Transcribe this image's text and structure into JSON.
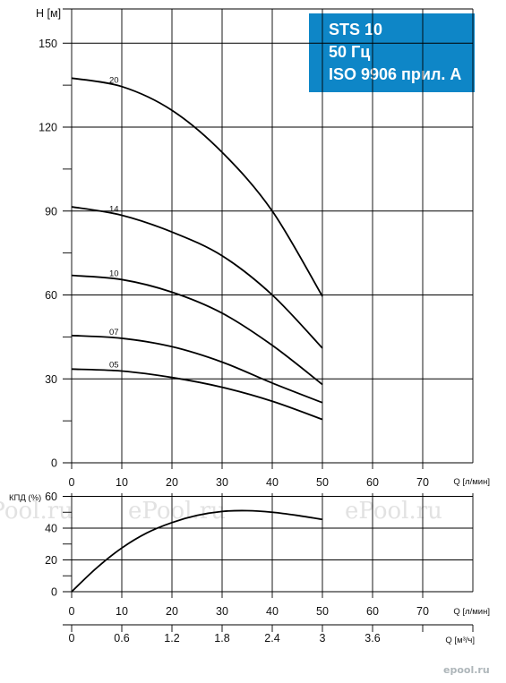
{
  "title_box": {
    "line1": "STS 10",
    "line2": "50 Гц",
    "line3": "ISO 9906 прил. A",
    "background": "#0e86c7",
    "text_color": "#ffffff"
  },
  "watermark": {
    "text": "ePool.ru",
    "logo": "epool.ru"
  },
  "chart_data": [
    {
      "type": "line",
      "ylabel": "H [м]",
      "xlabel": "Q [л/мин]",
      "xlim": [
        0,
        80
      ],
      "ylim": [
        0,
        160
      ],
      "x_ticks": [
        "0",
        "10",
        "20",
        "30",
        "40",
        "50",
        "60",
        "70"
      ],
      "y_ticks": [
        "0",
        "30",
        "60",
        "90",
        "120",
        "150"
      ],
      "grid": true,
      "series": [
        {
          "name": "20",
          "x": [
            0,
            10,
            20,
            30,
            40,
            50
          ],
          "values": [
            137.5,
            134.5,
            126,
            111,
            90,
            59.5
          ]
        },
        {
          "name": "14",
          "x": [
            0,
            10,
            20,
            30,
            40,
            50
          ],
          "values": [
            91.5,
            88.5,
            82.5,
            74,
            60,
            41
          ]
        },
        {
          "name": "10",
          "x": [
            0,
            10,
            20,
            30,
            40,
            50
          ],
          "values": [
            67,
            65.5,
            61,
            53.5,
            42,
            28
          ]
        },
        {
          "name": "07",
          "x": [
            0,
            10,
            20,
            30,
            40,
            50
          ],
          "values": [
            45.5,
            44.5,
            41.5,
            36,
            28.5,
            21.5
          ]
        },
        {
          "name": "05",
          "x": [
            0,
            10,
            20,
            30,
            40,
            50
          ],
          "values": [
            33.5,
            32.8,
            30.5,
            27,
            22,
            15.5
          ]
        }
      ]
    },
    {
      "type": "line",
      "ylabel": "КПД (%)",
      "xlabel": "Q [л/мин]",
      "xlim": [
        0,
        80
      ],
      "ylim": [
        0,
        60
      ],
      "x_ticks": [
        "0",
        "10",
        "20",
        "30",
        "40",
        "50",
        "60",
        "70"
      ],
      "y_ticks": [
        "0",
        "20",
        "40",
        "60"
      ],
      "grid": true,
      "series": [
        {
          "name": "",
          "x": [
            0,
            5,
            10,
            15,
            20,
            25,
            30,
            35,
            40,
            45,
            50
          ],
          "values": [
            0,
            15,
            27.5,
            37,
            43.5,
            48,
            50.5,
            51,
            50,
            48,
            45.5
          ]
        }
      ]
    },
    {
      "type": "axis",
      "xlabel": "Q [м³/ч]",
      "x_ticks": [
        "0",
        "0.6",
        "1.2",
        "1.8",
        "2.4",
        "3",
        "3.6"
      ]
    }
  ]
}
